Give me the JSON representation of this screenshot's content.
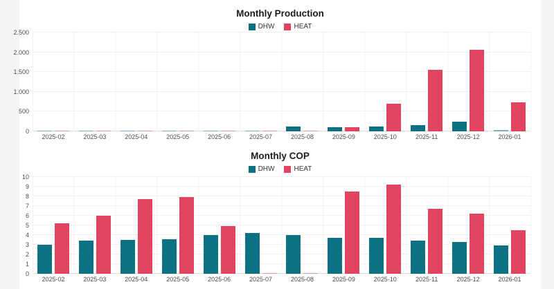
{
  "page": {
    "background": "#f4f4f5",
    "panel_background": "#ffffff",
    "accent_dhw": "#0e7183",
    "accent_heat": "#e0455f"
  },
  "chart_data": [
    {
      "type": "bar",
      "title": "Monthly Production",
      "legend_position": "top",
      "grid": true,
      "categories": [
        "2025-02",
        "2025-03",
        "2025-04",
        "2025-05",
        "2025-06",
        "2025-07",
        "2025-08",
        "2025-09",
        "2025-10",
        "2025-11",
        "2025-12",
        "2026-01"
      ],
      "series": [
        {
          "name": "DHW",
          "color": "#0e7183",
          "values": [
            12,
            12,
            12,
            10,
            15,
            25,
            120,
            110,
            130,
            150,
            240,
            35
          ]
        },
        {
          "name": "HEAT",
          "color": "#e0455f",
          "values": [
            8,
            8,
            8,
            6,
            8,
            8,
            10,
            100,
            695,
            1550,
            2060,
            730
          ]
        }
      ],
      "ylim": [
        0,
        2500
      ],
      "ytick_labels": [
        "0",
        "500",
        "1.000",
        "1.500",
        "2.000",
        "2.500"
      ],
      "xlabel": "",
      "ylabel": ""
    },
    {
      "type": "bar",
      "title": "Monthly COP",
      "legend_position": "top",
      "grid": true,
      "categories": [
        "2025-02",
        "2025-03",
        "2025-04",
        "2025-05",
        "2025-06",
        "2025-07",
        "2025-08",
        "2025-09",
        "2025-10",
        "2025-11",
        "2025-12",
        "2026-01"
      ],
      "series": [
        {
          "name": "DHW",
          "color": "#0e7183",
          "values": [
            3.0,
            3.4,
            3.5,
            3.6,
            4.0,
            4.2,
            4.0,
            3.7,
            3.7,
            3.4,
            3.3,
            2.9
          ]
        },
        {
          "name": "HEAT",
          "color": "#e0455f",
          "values": [
            5.2,
            6.0,
            7.7,
            7.9,
            4.9,
            0.05,
            0.05,
            8.5,
            9.2,
            6.7,
            6.2,
            4.5
          ]
        }
      ],
      "ylim": [
        0,
        10
      ],
      "ytick_labels": [
        "0",
        "1",
        "2",
        "3",
        "4",
        "5",
        "6",
        "7",
        "8",
        "9",
        "10"
      ],
      "xlabel": "",
      "ylabel": ""
    }
  ]
}
